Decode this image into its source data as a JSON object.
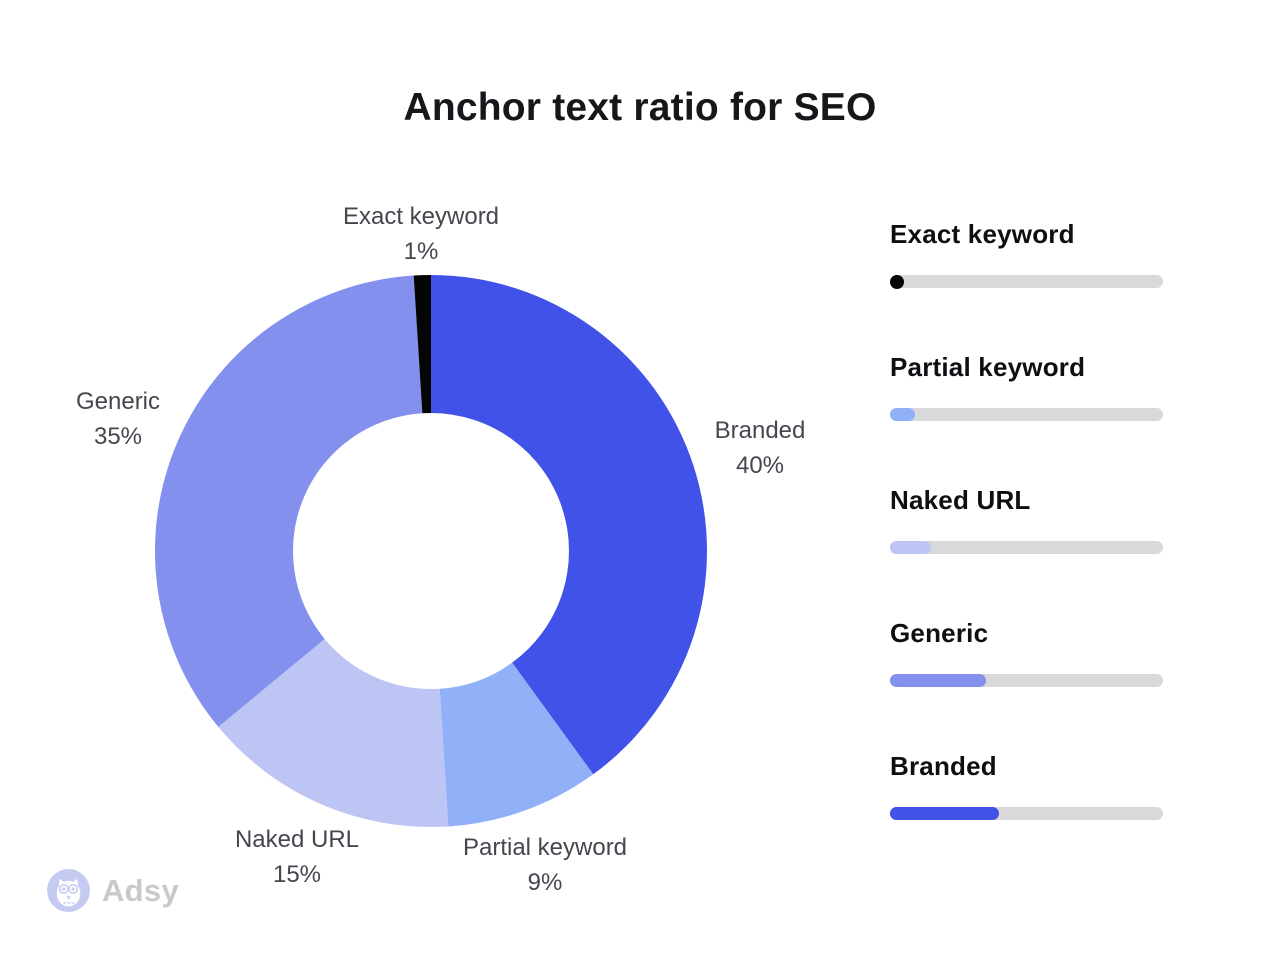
{
  "page": {
    "title": "Anchor text ratio for SEO"
  },
  "chart_data": {
    "type": "pie",
    "variant": "donut",
    "title": "Anchor text ratio for SEO",
    "start_angle_deg": 0,
    "direction": "clockwise",
    "inner_radius_ratio": 0.5,
    "legend_position": "right",
    "segments": [
      {
        "label": "Branded",
        "value": 40,
        "display": "40%",
        "color": "#4152e8"
      },
      {
        "label": "Partial keyword",
        "value": 9,
        "display": "9%",
        "color": "#90b1f8"
      },
      {
        "label": "Naked URL",
        "value": 15,
        "display": "15%",
        "color": "#bdc5f4"
      },
      {
        "label": "Generic",
        "value": 35,
        "display": "35%",
        "color": "#8490ee"
      },
      {
        "label": "Exact keyword",
        "value": 1,
        "display": "1%",
        "color": "#050505"
      }
    ]
  },
  "legend": {
    "track_color": "#d9d9dc",
    "items": [
      {
        "label": "Exact keyword",
        "value": 1,
        "color": "#050505"
      },
      {
        "label": "Partial keyword",
        "value": 9,
        "color": "#90b1f8"
      },
      {
        "label": "Naked URL",
        "value": 15,
        "color": "#bdc5f4"
      },
      {
        "label": "Generic",
        "value": 35,
        "color": "#8490ee"
      },
      {
        "label": "Branded",
        "value": 40,
        "color": "#4152e8"
      }
    ]
  },
  "footer": {
    "brand": "Adsy"
  }
}
